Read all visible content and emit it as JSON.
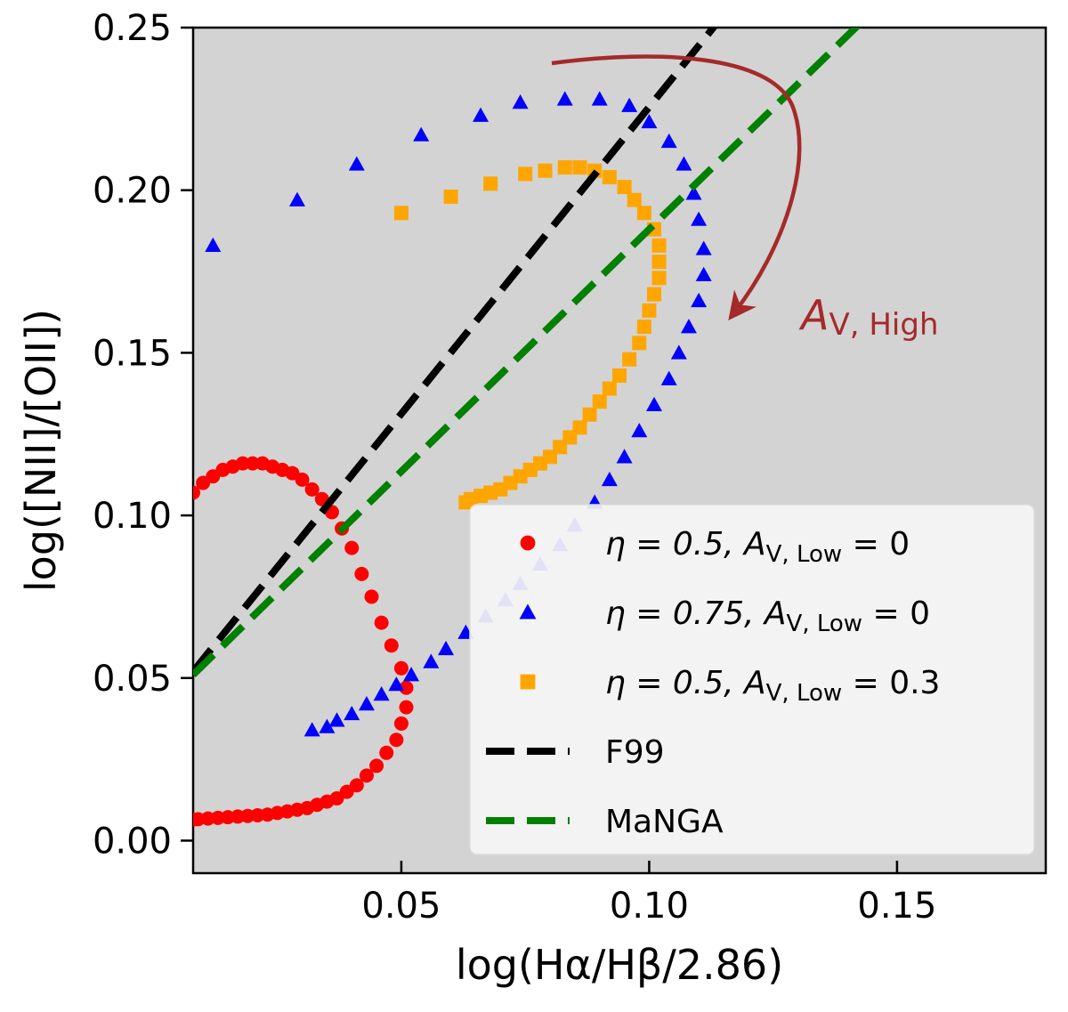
{
  "chart_data": {
    "type": "scatter",
    "title": "",
    "xlabel": "log(Hα/Hβ/2.86)",
    "ylabel": "log([NII]/[OII])",
    "xlim": [
      0.008,
      0.18
    ],
    "ylim": [
      -0.01,
      0.25
    ],
    "x_ticks": [
      {
        "value": 0.05,
        "label": "0.05"
      },
      {
        "value": 0.1,
        "label": "0.10"
      },
      {
        "value": 0.15,
        "label": "0.15"
      }
    ],
    "y_ticks": [
      {
        "value": 0.0,
        "label": "0.00"
      },
      {
        "value": 0.05,
        "label": "0.05"
      },
      {
        "value": 0.1,
        "label": "0.10"
      },
      {
        "value": 0.15,
        "label": "0.15"
      },
      {
        "value": 0.2,
        "label": "0.20"
      },
      {
        "value": 0.25,
        "label": "0.25"
      }
    ],
    "legend_position": "bottom-right",
    "annotation": {
      "base": "A",
      "subscript": "V, High",
      "note": "curved arrow indicating direction of increasing high-region extinction"
    },
    "series": [
      {
        "name": "eta=0.5, A_V,Low=0",
        "legend_label": "η = 0.5, A",
        "legend_sub": "V, Low",
        "legend_tail": " = 0",
        "marker": "circle",
        "color": "#ff0000",
        "x": [
          0.008,
          0.01,
          0.012,
          0.014,
          0.016,
          0.018,
          0.02,
          0.022,
          0.024,
          0.026,
          0.028,
          0.03,
          0.032,
          0.034,
          0.036,
          0.038,
          0.04,
          0.042,
          0.044,
          0.046,
          0.048,
          0.05,
          0.051,
          0.051,
          0.05,
          0.049,
          0.047,
          0.045,
          0.043,
          0.041,
          0.039,
          0.037,
          0.035,
          0.033,
          0.031,
          0.029,
          0.027,
          0.025,
          0.023,
          0.021,
          0.019,
          0.017,
          0.015,
          0.013,
          0.011,
          0.009,
          0.008
        ],
        "y": [
          0.107,
          0.11,
          0.112,
          0.114,
          0.115,
          0.116,
          0.116,
          0.116,
          0.115,
          0.114,
          0.113,
          0.111,
          0.108,
          0.105,
          0.101,
          0.096,
          0.09,
          0.082,
          0.075,
          0.067,
          0.06,
          0.053,
          0.047,
          0.041,
          0.036,
          0.031,
          0.027,
          0.023,
          0.02,
          0.017,
          0.015,
          0.013,
          0.012,
          0.011,
          0.01,
          0.0095,
          0.009,
          0.0085,
          0.008,
          0.0078,
          0.0076,
          0.0074,
          0.0072,
          0.007,
          0.0068,
          0.0066,
          0.0065
        ]
      },
      {
        "name": "eta=0.75, A_V,Low=0",
        "legend_label": "η = 0.75, A",
        "legend_sub": "V, Low",
        "legend_tail": " = 0",
        "marker": "triangle",
        "color": "#0000ff",
        "x": [
          0.012,
          0.029,
          0.041,
          0.054,
          0.066,
          0.074,
          0.083,
          0.09,
          0.096,
          0.1,
          0.104,
          0.107,
          0.109,
          0.11,
          0.111,
          0.111,
          0.11,
          0.108,
          0.106,
          0.104,
          0.101,
          0.098,
          0.095,
          0.092,
          0.089,
          0.085,
          0.082,
          0.078,
          0.074,
          0.071,
          0.067,
          0.063,
          0.059,
          0.056,
          0.052,
          0.049,
          0.046,
          0.043,
          0.04,
          0.037,
          0.035,
          0.032
        ],
        "y": [
          0.183,
          0.197,
          0.208,
          0.217,
          0.223,
          0.227,
          0.228,
          0.228,
          0.226,
          0.221,
          0.215,
          0.208,
          0.199,
          0.191,
          0.182,
          0.174,
          0.166,
          0.158,
          0.15,
          0.142,
          0.134,
          0.126,
          0.118,
          0.111,
          0.104,
          0.097,
          0.091,
          0.085,
          0.079,
          0.074,
          0.069,
          0.064,
          0.059,
          0.055,
          0.051,
          0.048,
          0.045,
          0.042,
          0.039,
          0.037,
          0.035,
          0.034
        ]
      },
      {
        "name": "eta=0.5, A_V,Low=0.3",
        "legend_label": "η = 0.5, A",
        "legend_sub": "V, Low",
        "legend_tail": " = 0.3",
        "marker": "square",
        "color": "#ffa500",
        "x": [
          0.05,
          0.06,
          0.068,
          0.075,
          0.079,
          0.083,
          0.086,
          0.089,
          0.092,
          0.095,
          0.097,
          0.099,
          0.101,
          0.102,
          0.102,
          0.102,
          0.101,
          0.1,
          0.099,
          0.098,
          0.096,
          0.094,
          0.092,
          0.09,
          0.088,
          0.086,
          0.084,
          0.082,
          0.08,
          0.078,
          0.076,
          0.074,
          0.072,
          0.07,
          0.068,
          0.066,
          0.064,
          0.063
        ],
        "y": [
          0.193,
          0.198,
          0.202,
          0.205,
          0.206,
          0.207,
          0.207,
          0.206,
          0.204,
          0.201,
          0.197,
          0.193,
          0.188,
          0.183,
          0.178,
          0.173,
          0.168,
          0.163,
          0.158,
          0.153,
          0.148,
          0.143,
          0.139,
          0.135,
          0.131,
          0.127,
          0.124,
          0.121,
          0.118,
          0.116,
          0.114,
          0.112,
          0.11,
          0.108,
          0.107,
          0.106,
          0.105,
          0.104
        ]
      },
      {
        "name": "F99",
        "legend_label": "F99",
        "marker": "dashed-line",
        "color": "#000000",
        "x": [
          0.008,
          0.114
        ],
        "y": [
          0.052,
          0.252
        ]
      },
      {
        "name": "MaNGA",
        "legend_label": "MaNGA",
        "marker": "dashed-line",
        "color": "#008000",
        "x": [
          0.008,
          0.143
        ],
        "y": [
          0.051,
          0.252
        ]
      }
    ]
  }
}
